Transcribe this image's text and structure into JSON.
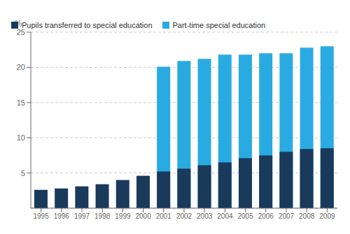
{
  "chart_data": {
    "type": "bar",
    "categories": [
      "1995",
      "1996",
      "1997",
      "1998",
      "1999",
      "2000",
      "2001",
      "2002",
      "2003",
      "2004",
      "2005",
      "2006",
      "2007",
      "2008",
      "2009"
    ],
    "series": [
      {
        "name": "Pupils transferred to special education",
        "color": "#1a3a5c",
        "values": [
          2.6,
          2.8,
          3.1,
          3.4,
          4.0,
          4.6,
          5.2,
          5.6,
          6.1,
          6.5,
          7.1,
          7.5,
          8.0,
          8.4,
          8.5
        ]
      },
      {
        "name": "Part-time special education",
        "color": "#29abe2",
        "values": [
          null,
          null,
          null,
          null,
          null,
          null,
          20.1,
          20.9,
          21.2,
          21.8,
          21.8,
          22.0,
          22.0,
          22.8,
          23.0
        ]
      }
    ],
    "y_label": "%",
    "ylim": [
      0,
      25
    ],
    "yticks": [
      5,
      10,
      15,
      20,
      25
    ],
    "grid": true,
    "legend": "upper left"
  }
}
